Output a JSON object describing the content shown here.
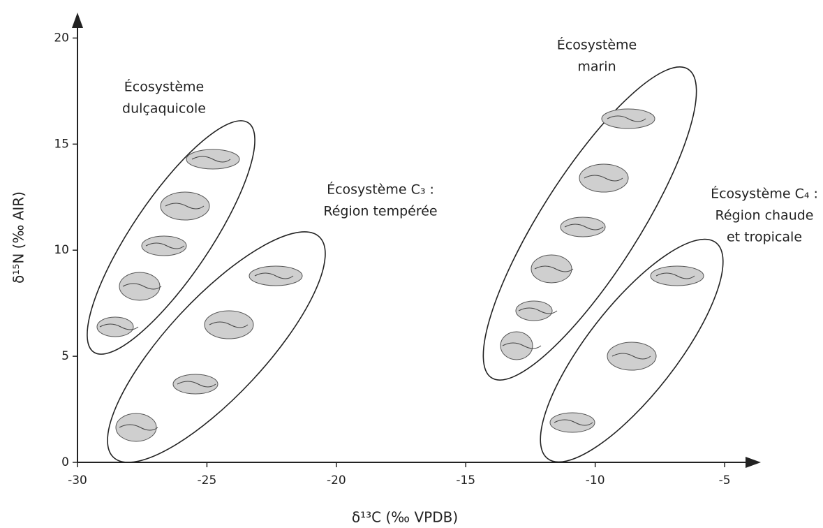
{
  "chart_data": {
    "type": "region-diagram",
    "x_label": "δ¹³C    (‰ VPDB)",
    "y_label": "δ¹⁵N    (‰ AIR)",
    "xlim": [
      -30,
      -3.6
    ],
    "ylim": [
      0,
      21.2
    ],
    "xticks": [
      -30,
      -25,
      -20,
      -15,
      -10,
      -5
    ],
    "yticks": [
      0,
      5,
      10,
      15,
      20
    ],
    "regions": [
      {
        "lines": [
          "Écosystème",
          "dulçaquicole"
        ]
      },
      {
        "lines": [
          "Écosystème C₃ :",
          "Région tempérée"
        ]
      },
      {
        "lines": [
          "Écosystème",
          "marin"
        ]
      },
      {
        "lines": [
          "Écosystème C₄ :",
          "Région chaude",
          "et tropicale"
        ]
      }
    ]
  }
}
